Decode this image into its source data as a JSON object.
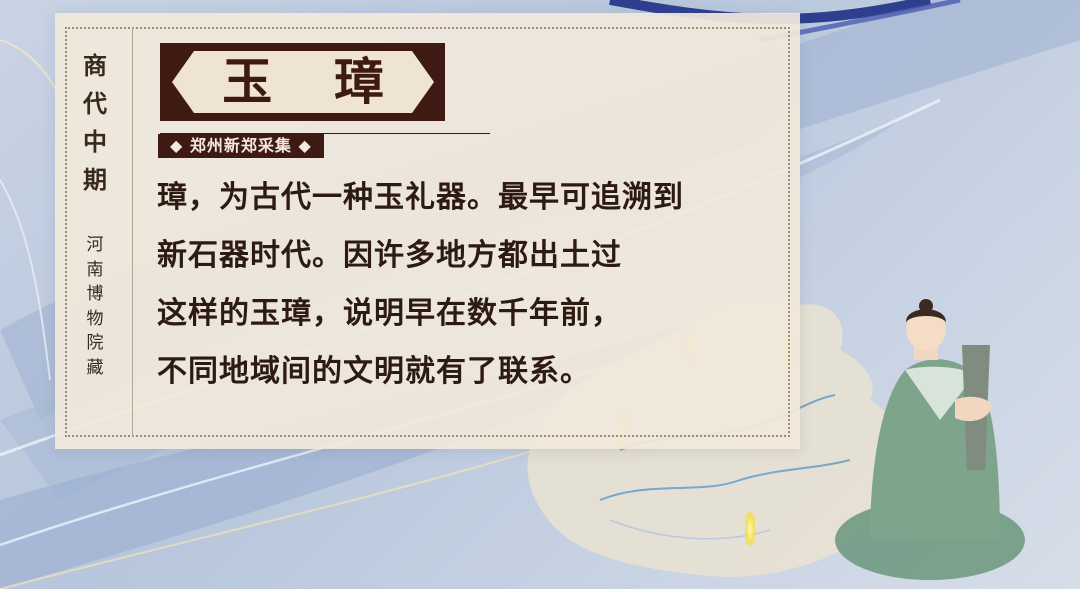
{
  "card": {
    "dynasty": [
      "商",
      "代",
      "中",
      "期"
    ],
    "museum": [
      "河",
      "南",
      "博",
      "物",
      "院",
      "藏"
    ],
    "title": "玉 璋",
    "source": "◆ 郑州新郑采集 ◆",
    "body_lines": [
      "璋，为古代一种玉礼器。最早可追溯到",
      "新石器时代。因许多地方都出土过",
      "这样的玉璋，说明早在数千年前，",
      "不同地域间的文明就有了联系。"
    ]
  },
  "colors": {
    "title_bg": "#3e1a13",
    "card_bg": "#f1e8dc",
    "marker": "#f3de5c",
    "figure_robe": "#7ea58c"
  },
  "decor": {
    "map": "china-map",
    "figure": "scholar-holding-jade-icon"
  }
}
